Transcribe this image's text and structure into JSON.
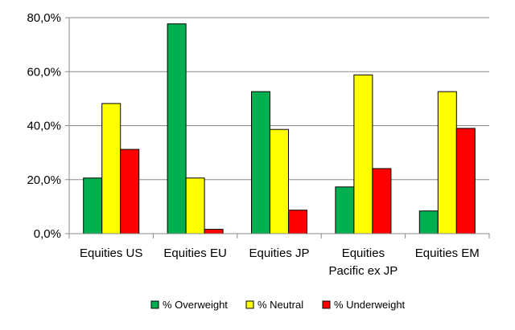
{
  "chart_data": {
    "type": "bar",
    "categories": [
      [
        "Equities US"
      ],
      [
        "Equities EU"
      ],
      [
        "Equities JP"
      ],
      [
        "Equities",
        "Pacific ex JP"
      ],
      [
        "Equities EM"
      ]
    ],
    "series": [
      {
        "name": "% Overweight",
        "color": "#00b050",
        "values": [
          20.6,
          77.7,
          52.6,
          17.3,
          8.4
        ]
      },
      {
        "name": "% Neutral",
        "color": "#ffff00",
        "values": [
          48.2,
          20.6,
          38.6,
          58.8,
          52.6
        ]
      },
      {
        "name": "% Underweight",
        "color": "#ff0000",
        "values": [
          31.2,
          1.6,
          8.7,
          24.1,
          39.0
        ]
      }
    ],
    "ylim": [
      0,
      80
    ],
    "yticks": [
      "0,0%",
      "20,0%",
      "40,0%",
      "60,0%",
      "80,0%"
    ],
    "grid": true,
    "legend_position": "bottom",
    "bar_outline": "#000000",
    "grid_color": "#888888"
  }
}
